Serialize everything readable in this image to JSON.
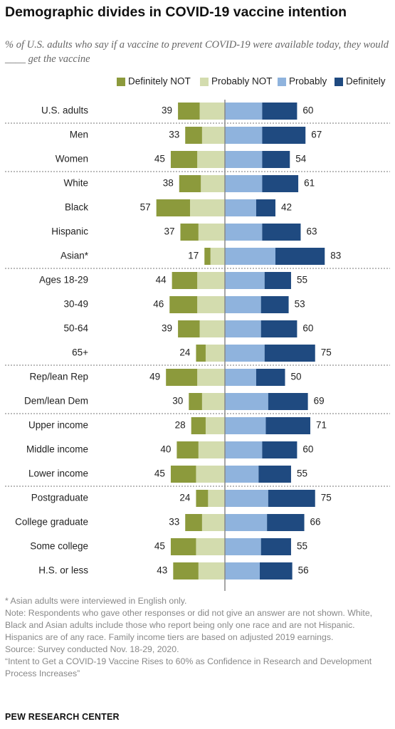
{
  "header": {
    "title": "Demographic divides in COVID-19 vaccine intention",
    "subtitle": "% of U.S. adults who say if a vaccine to prevent COVID-19 were available today, they would ____ get the vaccine"
  },
  "colors": {
    "definitely_not": "#8c9a3c",
    "probably_not": "#d3dcae",
    "probably": "#8fb3dd",
    "definitely": "#1f4a80",
    "divider": "#888888"
  },
  "chart_data": {
    "type": "bar",
    "layout": "diverging-stacked",
    "series": [
      {
        "name": "Definitely NOT",
        "side": "negative"
      },
      {
        "name": "Probably NOT",
        "side": "negative"
      },
      {
        "name": "Probably",
        "side": "positive"
      },
      {
        "name": "Definitely",
        "side": "positive"
      }
    ],
    "rows": [
      {
        "label": "U.S. adults",
        "def_not": 18,
        "prob_not": 21,
        "prob": 31,
        "def": 29,
        "no_total": 39,
        "yes_total": 60,
        "group_end": true
      },
      {
        "label": "Men",
        "def_not": 14,
        "prob_not": 19,
        "prob": 31,
        "def": 36,
        "no_total": 33,
        "yes_total": 67
      },
      {
        "label": "Women",
        "def_not": 22,
        "prob_not": 23,
        "prob": 31,
        "def": 23,
        "no_total": 45,
        "yes_total": 54,
        "group_end": true
      },
      {
        "label": "White",
        "def_not": 18,
        "prob_not": 20,
        "prob": 31,
        "def": 30,
        "no_total": 38,
        "yes_total": 61
      },
      {
        "label": "Black",
        "def_not": 28,
        "prob_not": 29,
        "prob": 26,
        "def": 16,
        "no_total": 57,
        "yes_total": 42
      },
      {
        "label": "Hispanic",
        "def_not": 15,
        "prob_not": 22,
        "prob": 31,
        "def": 32,
        "no_total": 37,
        "yes_total": 63
      },
      {
        "label": "Asian*",
        "def_not": 5,
        "prob_not": 12,
        "prob": 42,
        "def": 41,
        "no_total": 17,
        "yes_total": 83,
        "group_end": true
      },
      {
        "label": "Ages 18-29",
        "def_not": 21,
        "prob_not": 23,
        "prob": 33,
        "def": 22,
        "no_total": 44,
        "yes_total": 55
      },
      {
        "label": "30-49",
        "def_not": 23,
        "prob_not": 23,
        "prob": 30,
        "def": 23,
        "no_total": 46,
        "yes_total": 53
      },
      {
        "label": "50-64",
        "def_not": 18,
        "prob_not": 21,
        "prob": 30,
        "def": 30,
        "no_total": 39,
        "yes_total": 60
      },
      {
        "label": "65+",
        "def_not": 8,
        "prob_not": 16,
        "prob": 33,
        "def": 42,
        "no_total": 24,
        "yes_total": 75,
        "group_end": true
      },
      {
        "label": "Rep/lean Rep",
        "def_not": 26,
        "prob_not": 23,
        "prob": 26,
        "def": 24,
        "no_total": 49,
        "yes_total": 50
      },
      {
        "label": "Dem/lean Dem",
        "def_not": 11,
        "prob_not": 19,
        "prob": 36,
        "def": 33,
        "no_total": 30,
        "yes_total": 69,
        "group_end": true
      },
      {
        "label": "Upper income",
        "def_not": 12,
        "prob_not": 16,
        "prob": 34,
        "def": 37,
        "no_total": 28,
        "yes_total": 71
      },
      {
        "label": "Middle income",
        "def_not": 18,
        "prob_not": 22,
        "prob": 31,
        "def": 29,
        "no_total": 40,
        "yes_total": 60
      },
      {
        "label": "Lower income",
        "def_not": 21,
        "prob_not": 24,
        "prob": 28,
        "def": 27,
        "no_total": 45,
        "yes_total": 55,
        "group_end": true
      },
      {
        "label": "Postgraduate",
        "def_not": 10,
        "prob_not": 14,
        "prob": 36,
        "def": 39,
        "no_total": 24,
        "yes_total": 75
      },
      {
        "label": "College graduate",
        "def_not": 14,
        "prob_not": 19,
        "prob": 35,
        "def": 31,
        "no_total": 33,
        "yes_total": 66
      },
      {
        "label": "Some college",
        "def_not": 21,
        "prob_not": 24,
        "prob": 30,
        "def": 25,
        "no_total": 45,
        "yes_total": 55
      },
      {
        "label": "H.S. or less",
        "def_not": 21,
        "prob_not": 22,
        "prob": 29,
        "def": 27,
        "no_total": 43,
        "yes_total": 56
      }
    ]
  },
  "notes": {
    "asian_note": "* Asian adults were interviewed in English only.",
    "note": "Note: Respondents who gave other responses or did not give an answer are not shown. White, Black and Asian adults include those who report being only one race and are not Hispanic. Hispanics are of any race. Family income tiers are based on adjusted 2019 earnings.",
    "source": "Source: Survey conducted Nov. 18-29, 2020.",
    "report": "“Intent to Get a COVID-19 Vaccine Rises to 60% as Confidence in Research and Development Process Increases”"
  },
  "brand": "PEW RESEARCH CENTER"
}
